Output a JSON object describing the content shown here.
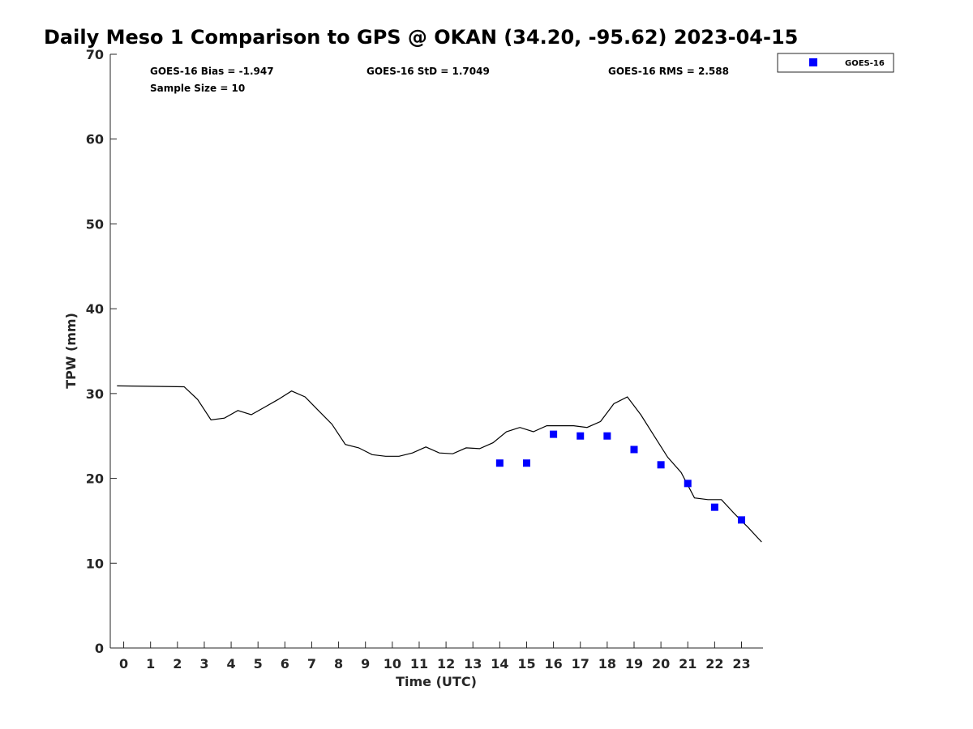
{
  "chart_data": {
    "type": "line",
    "title": "Daily Meso 1 Comparison to GPS @ OKAN (34.20, -95.62) 2023-04-15",
    "xlabel": "Time (UTC)",
    "ylabel": "TPW (mm)",
    "xlim": [
      -0.5,
      23.8
    ],
    "ylim": [
      0,
      70
    ],
    "x_ticks": [
      0,
      1,
      2,
      3,
      4,
      5,
      6,
      7,
      8,
      9,
      10,
      11,
      12,
      13,
      14,
      15,
      16,
      17,
      18,
      19,
      20,
      21,
      22,
      23
    ],
    "y_ticks": [
      0,
      10,
      20,
      30,
      40,
      50,
      60,
      70
    ],
    "grid": false,
    "legend_position": "top-right (outside plot)",
    "stats": {
      "bias": "GOES-16 Bias = -1.947",
      "std": "GOES-16 StD = 1.7049",
      "rms": "GOES-16 RMS = 2.588",
      "sample": "Sample Size = 10"
    },
    "series": [
      {
        "kind": "line",
        "color": "#000000",
        "x": [
          -0.25,
          2.25,
          2.75,
          3.25,
          3.75,
          4.25,
          4.75,
          5.25,
          5.75,
          6.25,
          6.75,
          7.25,
          7.75,
          8.25,
          8.75,
          9.25,
          9.75,
          10.25,
          10.75,
          11.25,
          11.75,
          12.25,
          12.75,
          13.25,
          13.75,
          14.25,
          14.75,
          15.25,
          15.75,
          16.25,
          16.75,
          17.25,
          17.75,
          18.25,
          18.75,
          19.25,
          19.75,
          20.25,
          20.75,
          21.25,
          21.75,
          22.25,
          22.75,
          23.25,
          23.75
        ],
        "y": [
          30.9,
          30.8,
          29.3,
          26.9,
          27.1,
          28.0,
          27.5,
          28.4,
          29.3,
          30.3,
          29.6,
          28.0,
          26.4,
          24.0,
          23.6,
          22.8,
          22.6,
          22.6,
          23.0,
          23.7,
          23.0,
          22.9,
          23.6,
          23.5,
          24.2,
          25.5,
          26.0,
          25.5,
          26.2,
          26.2,
          26.2,
          26.0,
          26.7,
          28.8,
          29.6,
          27.5,
          25.0,
          22.5,
          20.7,
          17.7,
          17.5,
          17.5,
          15.8,
          14.2,
          12.5
        ]
      },
      {
        "name": "GOES-16",
        "kind": "scatter",
        "marker": "square",
        "color": "#0000ff",
        "x": [
          14,
          15,
          16,
          17,
          18,
          19,
          20,
          21,
          22,
          23
        ],
        "y": [
          21.8,
          21.8,
          25.2,
          25.0,
          25.0,
          23.4,
          21.6,
          19.4,
          16.6,
          15.1
        ]
      }
    ]
  }
}
